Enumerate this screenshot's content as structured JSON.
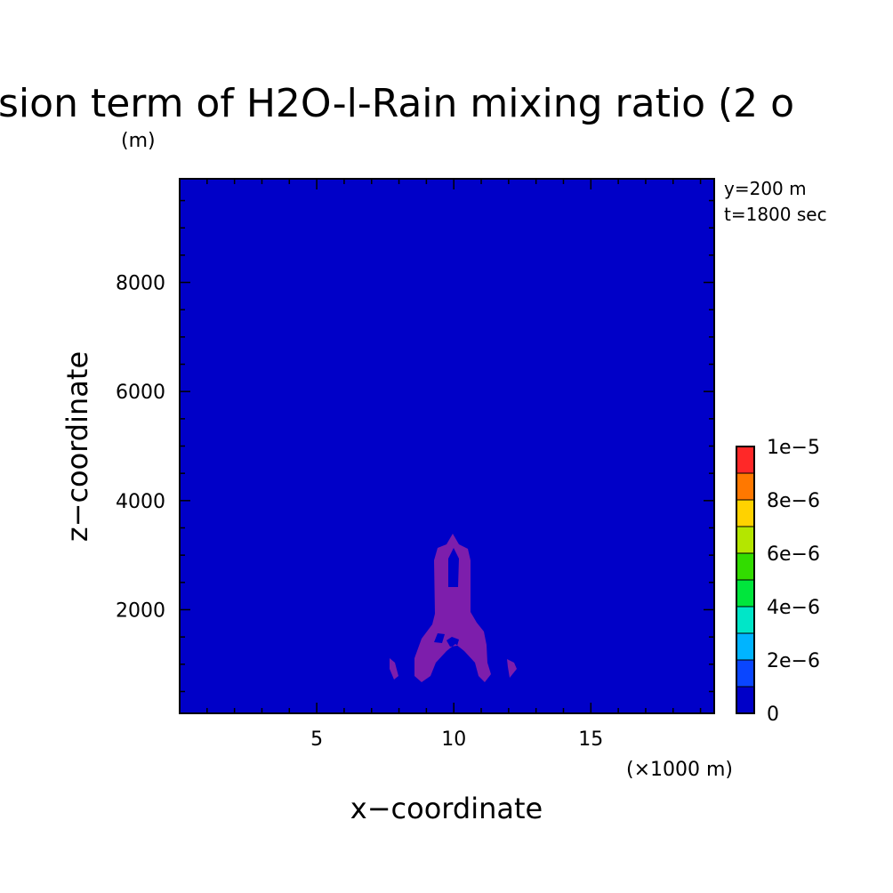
{
  "chart_data": {
    "type": "heatmap",
    "title": "sion term of H2O-l-Rain mixing ratio (2 o",
    "title_unit": "(m)",
    "xlabel": "x−coordinate",
    "ylabel": "z−coordinate",
    "x_unit": "(×1000 m)",
    "xlim": [
      0,
      19.5
    ],
    "ylim": [
      100,
      9900
    ],
    "x_ticks": [
      5,
      10,
      15
    ],
    "x_tick_labels": [
      "5",
      "10",
      "15"
    ],
    "y_ticks": [
      2000,
      4000,
      6000,
      8000
    ],
    "y_tick_labels": [
      "2000",
      "4000",
      "6000",
      "8000"
    ],
    "annotations": [
      "y=200 m",
      "t=1800 sec"
    ],
    "background_level_color": "#0000c8",
    "feature_color": "#7d1eac",
    "colorbar": {
      "levels": [
        0,
        1e-06,
        2e-06,
        3e-06,
        4e-06,
        5e-06,
        6e-06,
        7e-06,
        8e-06,
        9e-06,
        1e-05
      ],
      "colors": [
        "#0000c8",
        "#0a46ff",
        "#00b4ff",
        "#00e6c8",
        "#00e63c",
        "#32dc00",
        "#b4e600",
        "#ffd200",
        "#ff7800",
        "#ff2828"
      ],
      "labels": [
        "0",
        "2e−6",
        "4e−6",
        "6e−6",
        "8e−6",
        "1e−5"
      ]
    },
    "feature_region": {
      "description_value_level": "below 0",
      "x_range": [
        8,
        12.5
      ],
      "z_range": [
        650,
        3400
      ]
    }
  }
}
